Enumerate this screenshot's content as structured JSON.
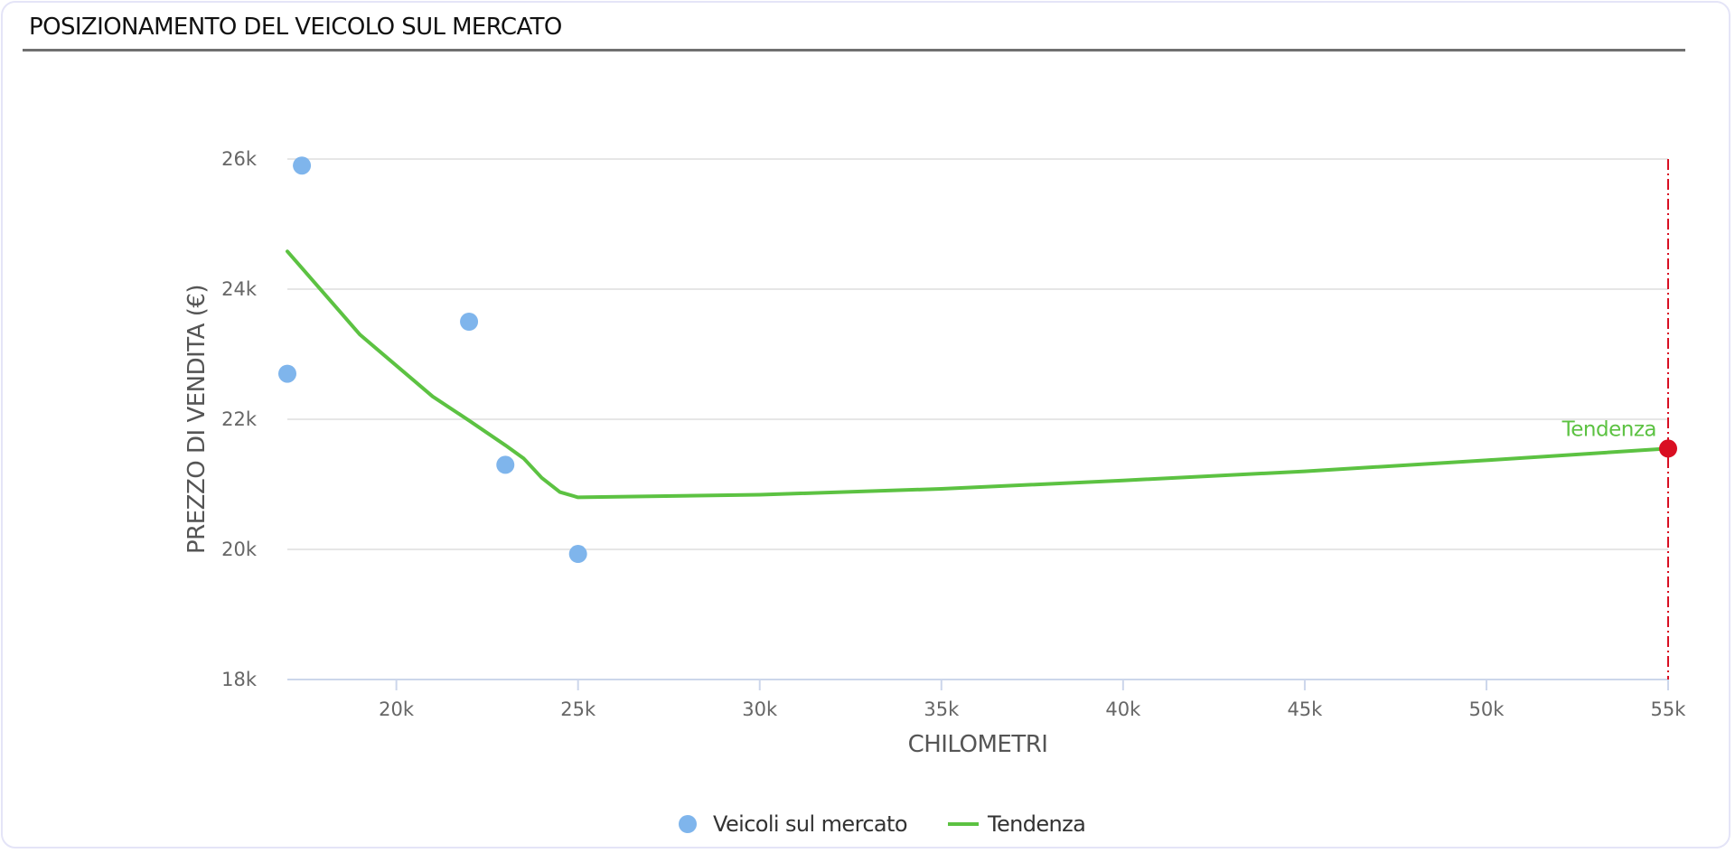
{
  "header": {
    "title": "POSIZIONAMENTO DEL VEICOLO SUL MERCATO"
  },
  "colors": {
    "scatter": "#7fb5ec",
    "trend": "#5cc242",
    "marker": "#d90f22",
    "grid": "#e6e6e6",
    "axis": "#ccd6eb",
    "text": "#666666",
    "title_text": "#555555",
    "legend_text": "#333333"
  },
  "chart_data": {
    "type": "scatter",
    "xlabel": "CHILOMETRI",
    "ylabel": "PREZZO DI VENDITA (€)",
    "xlim": [
      17000,
      55000
    ],
    "ylim": [
      18000,
      26000
    ],
    "x_ticks": [
      {
        "value": 20000,
        "label": "20k"
      },
      {
        "value": 25000,
        "label": "25k"
      },
      {
        "value": 30000,
        "label": "30k"
      },
      {
        "value": 35000,
        "label": "35k"
      },
      {
        "value": 40000,
        "label": "40k"
      },
      {
        "value": 45000,
        "label": "45k"
      },
      {
        "value": 50000,
        "label": "50k"
      },
      {
        "value": 55000,
        "label": "55k"
      }
    ],
    "y_ticks": [
      {
        "value": 18000,
        "label": "18k"
      },
      {
        "value": 20000,
        "label": "20k"
      },
      {
        "value": 22000,
        "label": "22k"
      },
      {
        "value": 24000,
        "label": "24k"
      },
      {
        "value": 26000,
        "label": "26k"
      }
    ],
    "grid": true,
    "legend_position": "bottom-center",
    "series": [
      {
        "name": "Veicoli sul mercato",
        "kind": "scatter",
        "points": [
          {
            "x": 17400,
            "y": 25900
          },
          {
            "x": 17000,
            "y": 22700
          },
          {
            "x": 22000,
            "y": 23500
          },
          {
            "x": 23000,
            "y": 21300
          },
          {
            "x": 25000,
            "y": 19930
          }
        ]
      },
      {
        "name": "Tendenza",
        "kind": "line",
        "points": [
          {
            "x": 17000,
            "y": 24580
          },
          {
            "x": 19000,
            "y": 23300
          },
          {
            "x": 21000,
            "y": 22350
          },
          {
            "x": 22000,
            "y": 21980
          },
          {
            "x": 23000,
            "y": 21600
          },
          {
            "x": 23500,
            "y": 21400
          },
          {
            "x": 24000,
            "y": 21100
          },
          {
            "x": 24500,
            "y": 20880
          },
          {
            "x": 25000,
            "y": 20800
          },
          {
            "x": 30000,
            "y": 20840
          },
          {
            "x": 35000,
            "y": 20930
          },
          {
            "x": 40000,
            "y": 21060
          },
          {
            "x": 45000,
            "y": 21200
          },
          {
            "x": 50000,
            "y": 21370
          },
          {
            "x": 55000,
            "y": 21550
          }
        ]
      }
    ],
    "highlight": {
      "label": "Tendenza",
      "x": 55000,
      "y": 21550
    }
  }
}
